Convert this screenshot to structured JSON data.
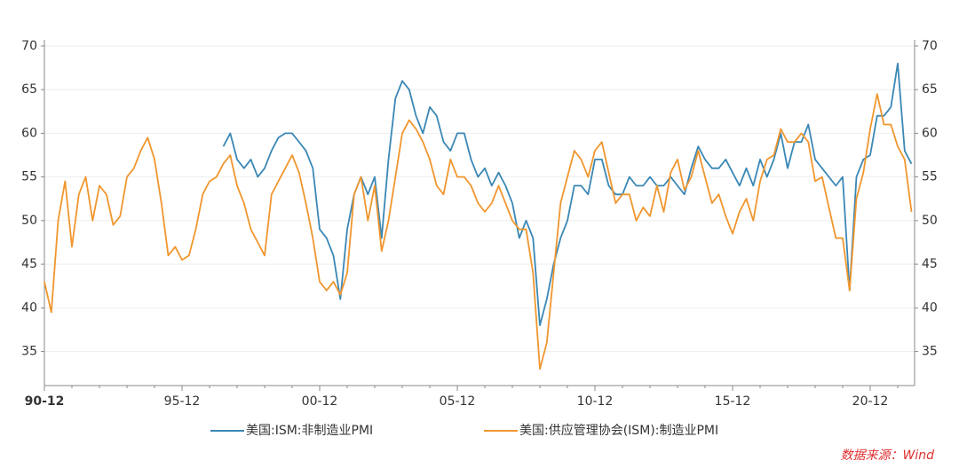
{
  "chart_data": {
    "type": "line",
    "categories": [
      "90-12",
      null,
      null,
      null,
      null,
      null,
      null,
      null,
      null,
      null,
      null,
      null,
      null,
      null,
      null,
      null,
      null,
      null,
      null,
      null,
      "95-12",
      null,
      null,
      null,
      null,
      null,
      null,
      null,
      null,
      null,
      null,
      null,
      null,
      null,
      null,
      null,
      null,
      null,
      null,
      null,
      "00-12",
      null,
      null,
      null,
      null,
      null,
      null,
      null,
      null,
      null,
      null,
      null,
      null,
      null,
      null,
      null,
      null,
      null,
      null,
      null,
      "05-12",
      null,
      null,
      null,
      null,
      null,
      null,
      null,
      null,
      null,
      null,
      null,
      null,
      null,
      null,
      null,
      null,
      null,
      null,
      null,
      "10-12",
      null,
      null,
      null,
      null,
      null,
      null,
      null,
      null,
      null,
      null,
      null,
      null,
      null,
      null,
      null,
      null,
      null,
      null,
      null,
      "15-12",
      null,
      null,
      null,
      null,
      null,
      null,
      null,
      null,
      null,
      null,
      null,
      null,
      null,
      null,
      null,
      null,
      null,
      null,
      null,
      "20-12",
      null,
      null,
      null,
      null,
      null,
      null
    ],
    "series": [
      {
        "name": "美国:ISM:非制造业PMI",
        "color": "#3a87b5",
        "values": [
          null,
          null,
          null,
          null,
          null,
          null,
          null,
          null,
          null,
          null,
          null,
          null,
          null,
          null,
          null,
          null,
          null,
          null,
          null,
          null,
          null,
          null,
          null,
          null,
          null,
          null,
          58.5,
          60,
          57,
          56,
          57,
          55,
          56,
          58,
          59.5,
          60,
          60,
          59,
          58,
          56,
          49,
          48,
          46,
          41,
          49,
          53,
          55,
          53,
          55,
          48,
          57,
          64,
          66,
          65,
          62,
          60,
          63,
          62,
          59,
          58,
          60,
          60,
          57,
          55,
          56,
          54,
          55.5,
          54,
          52,
          48,
          50,
          48,
          38,
          41,
          45,
          48,
          50,
          54,
          54,
          53,
          57,
          57,
          54,
          53,
          53,
          55,
          54,
          54,
          55,
          54,
          54,
          55,
          54,
          53,
          56,
          58.5,
          57,
          56,
          56,
          57,
          55.5,
          54,
          56,
          54,
          57,
          55,
          57,
          60,
          56,
          59,
          59,
          61,
          57,
          56,
          55,
          54,
          55,
          42,
          55,
          57,
          57.5,
          62,
          62,
          63,
          68,
          58,
          56.5
        ]
      },
      {
        "name": "美国:供应管理协会(ISM):制造业PMI",
        "color": "#f0962e",
        "values": [
          43,
          39.5,
          50,
          54.5,
          47,
          53,
          55,
          50,
          54,
          53,
          49.5,
          50.5,
          55,
          56,
          58,
          59.5,
          57,
          52,
          46,
          47,
          45.5,
          46,
          49,
          53,
          54.5,
          55,
          56.5,
          57.5,
          54,
          52,
          49,
          47.5,
          46,
          53,
          54.5,
          56,
          57.5,
          55.5,
          52,
          48,
          43,
          42,
          43,
          41.5,
          44,
          53,
          55,
          50,
          54,
          46.5,
          50,
          55,
          60,
          61.5,
          60.5,
          59,
          57,
          54,
          53,
          57,
          55,
          55,
          54,
          52,
          51,
          52,
          54,
          52,
          50,
          49,
          49,
          44,
          33,
          36,
          44,
          52,
          55,
          58,
          57,
          55,
          58,
          59,
          55.5,
          52,
          53,
          53,
          50,
          51.5,
          50.5,
          54,
          51,
          55.5,
          57,
          53.5,
          55,
          58,
          55,
          52,
          53,
          50.5,
          48.5,
          51,
          52.5,
          50,
          54.5,
          57,
          57.5,
          60.5,
          59,
          59,
          60,
          59,
          54.5,
          55,
          51.5,
          48,
          48,
          42,
          52.5,
          55.5,
          60.5,
          64.5,
          61,
          61,
          58.5,
          57,
          51
        ]
      }
    ],
    "ylim": [
      31.1,
      70.7
    ],
    "yticks": [
      35,
      40,
      45,
      50,
      55,
      60,
      65,
      70
    ],
    "y2lim": [
      31.1,
      70.7
    ],
    "y2ticks": [
      35,
      40,
      45,
      50,
      55,
      60,
      65,
      70
    ],
    "grid": true,
    "legend": "bottom",
    "source": "数据来源：Wind"
  }
}
